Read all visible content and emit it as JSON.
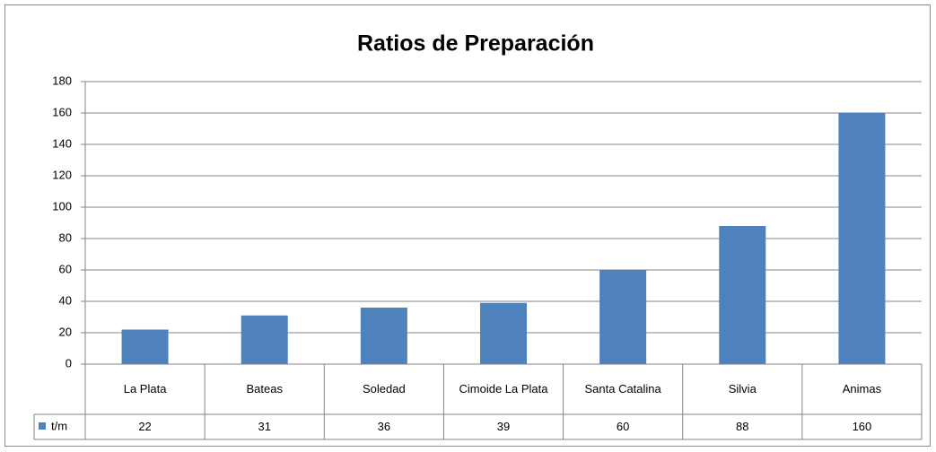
{
  "chart_data": {
    "type": "bar",
    "title": "Ratios de Preparación",
    "categories": [
      "La Plata",
      "Bateas",
      "Soledad",
      "Cimoide La Plata",
      "Santa Catalina",
      "Silvia",
      "Animas"
    ],
    "series": [
      {
        "name": "t/m",
        "color": "#4f81bd",
        "values": [
          22,
          31,
          36,
          39,
          60,
          88,
          160
        ]
      }
    ],
    "ylim": [
      0,
      180
    ],
    "yticks": [
      0,
      20,
      40,
      60,
      80,
      100,
      120,
      140,
      160,
      180
    ],
    "grid": true
  }
}
